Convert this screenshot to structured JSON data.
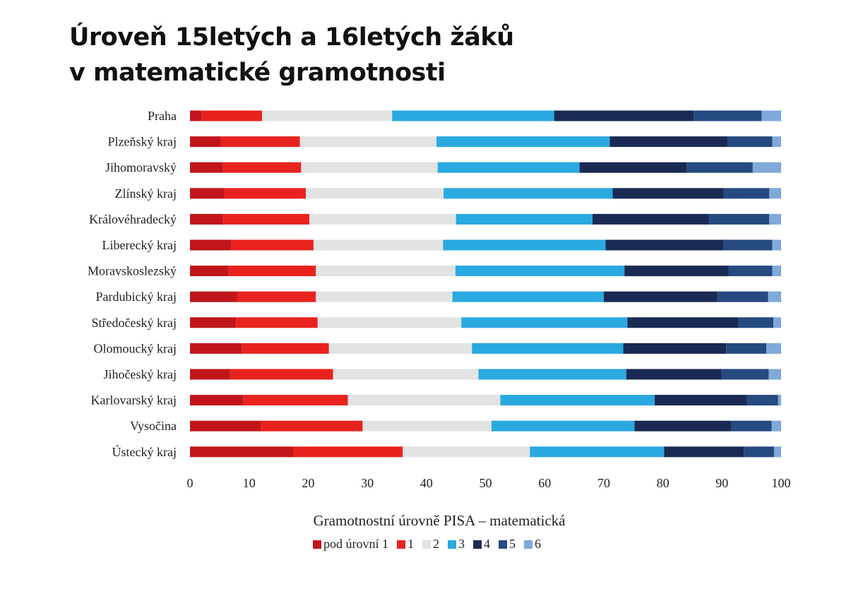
{
  "title_lines": [
    "Úroveň 15letých a 16letých žáků",
    "v matematické gramotnosti"
  ],
  "chart_data": {
    "type": "bar",
    "orientation": "horizontal",
    "stacked": true,
    "xlabel": "Gramotnostní úrovně PISA – matematická",
    "xlim": [
      0,
      100
    ],
    "xticks": [
      0,
      10,
      20,
      30,
      40,
      50,
      60,
      70,
      80,
      90,
      100
    ],
    "grid": false,
    "legend_position": "bottom",
    "categories": [
      "Praha",
      "Plzeňský kraj",
      "Jihomoravský",
      "Zlínský kraj",
      "Královéhradecký",
      "Liberecký kraj",
      "Moravskoslezský",
      "Pardubický kraj",
      "Středočeský kraj",
      "Olomoucký kraj",
      "Jihočeský kraj",
      "Karlovarský kraj",
      "Vysočina",
      "Ústecký kraj"
    ],
    "series": [
      {
        "name": "pod úrovní 1",
        "color": "#c0161b",
        "values": [
          2.0,
          5.2,
          5.5,
          5.8,
          5.5,
          7.0,
          6.5,
          8.0,
          7.8,
          8.8,
          6.8,
          9.0,
          12.0,
          17.5
        ]
      },
      {
        "name": "1",
        "color": "#e8231f",
        "values": [
          10.2,
          13.4,
          13.3,
          13.8,
          14.7,
          13.9,
          14.8,
          13.3,
          13.8,
          14.7,
          17.4,
          17.7,
          17.2,
          18.5
        ]
      },
      {
        "name": "2",
        "color": "#e2e3e3",
        "values": [
          22.0,
          23.1,
          23.1,
          23.3,
          24.8,
          21.9,
          23.6,
          23.1,
          24.3,
          24.2,
          24.6,
          25.8,
          21.8,
          21.5
        ]
      },
      {
        "name": "3",
        "color": "#2aa9e0",
        "values": [
          27.4,
          29.3,
          24.0,
          28.6,
          23.1,
          27.5,
          28.6,
          25.6,
          28.1,
          25.6,
          25.0,
          26.1,
          24.2,
          22.7
        ]
      },
      {
        "name": "4",
        "color": "#1a2a54",
        "values": [
          23.6,
          20.0,
          18.1,
          18.8,
          19.7,
          20.0,
          17.6,
          19.2,
          18.8,
          17.4,
          16.1,
          15.6,
          16.4,
          13.5
        ]
      },
      {
        "name": "5",
        "color": "#254a80",
        "values": [
          11.5,
          7.5,
          11.2,
          7.7,
          10.2,
          8.2,
          7.4,
          8.6,
          5.9,
          6.8,
          8.0,
          5.3,
          6.8,
          5.1
        ]
      },
      {
        "name": "6",
        "color": "#7fa9d8",
        "values": [
          3.3,
          1.5,
          4.8,
          2.0,
          2.0,
          1.5,
          1.5,
          2.2,
          1.3,
          2.5,
          2.1,
          0.5,
          1.6,
          1.2
        ]
      }
    ]
  }
}
